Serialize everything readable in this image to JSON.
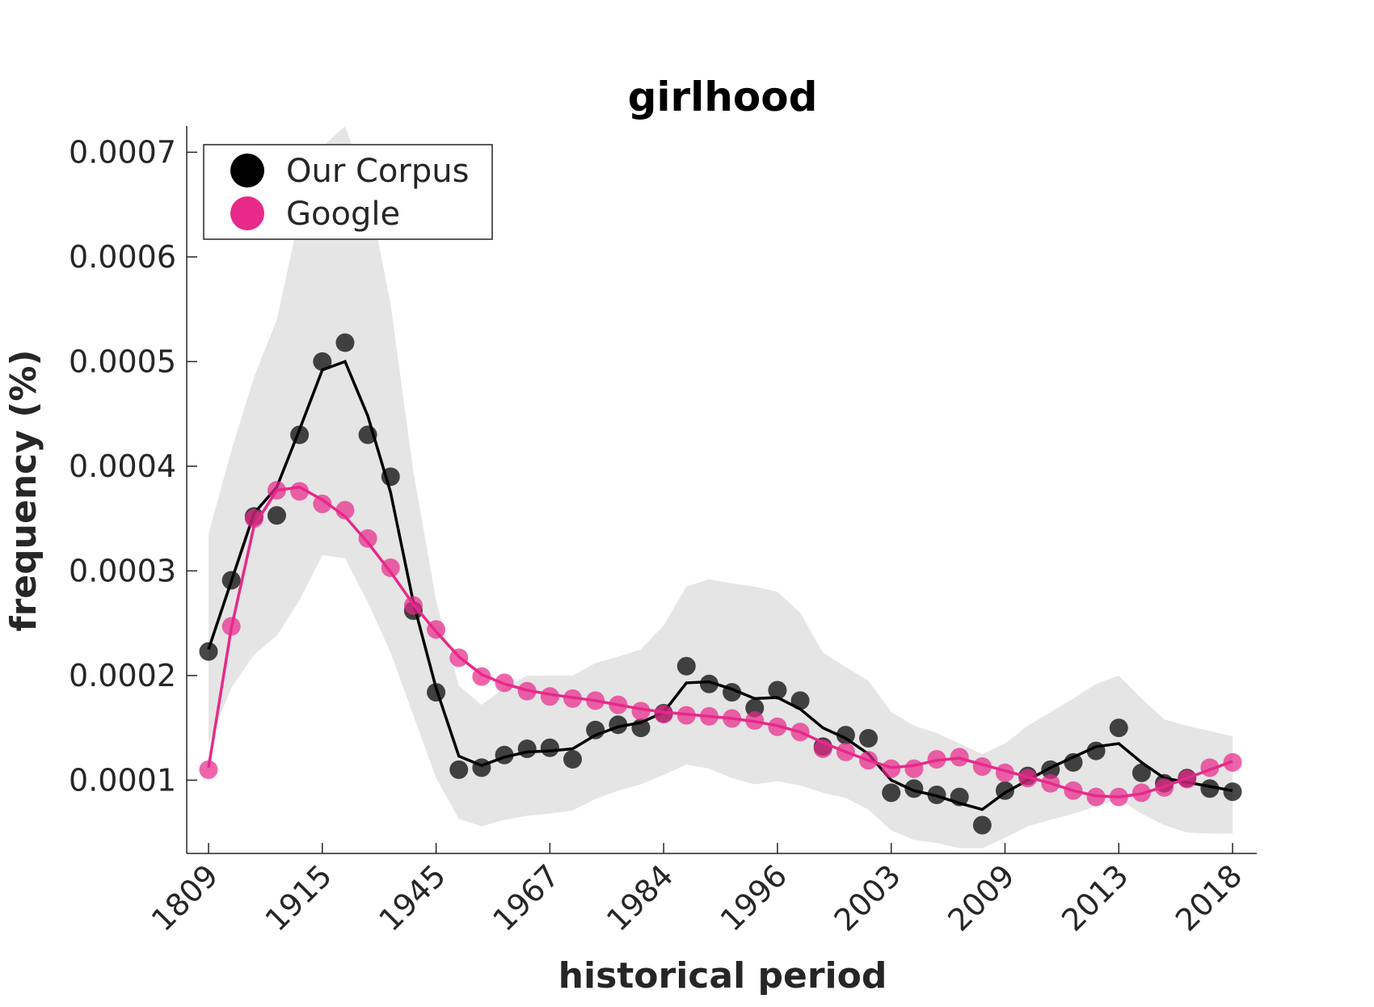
{
  "chart_data": {
    "type": "line",
    "title": "girlhood",
    "xlabel": "historical period",
    "ylabel": "frequency (%)",
    "x_tick_labels": [
      "1809",
      "1915",
      "1945",
      "1967",
      "1984",
      "1996",
      "2003",
      "2009",
      "2013",
      "2018"
    ],
    "y_ticks": [
      0.0001,
      0.0002,
      0.0003,
      0.0004,
      0.0005,
      0.0006,
      0.0007
    ],
    "y_tick_labels": [
      "0.0001",
      "0.0002",
      "0.0003",
      "0.0004",
      "0.0005",
      "0.0006",
      "0.0007"
    ],
    "ylim": [
      3e-05,
      0.000725
    ],
    "legend_position": "top-left",
    "grid": false,
    "series": [
      {
        "name": "Our Corpus",
        "color": "#000000",
        "points": [
          0.000223,
          0.000291,
          0.000352,
          0.000353,
          0.00043,
          0.0005,
          0.000518,
          0.00043,
          0.00039,
          0.000262,
          0.000184,
          0.00011,
          0.000112,
          0.000124,
          0.00013,
          0.000131,
          0.00012,
          0.000148,
          0.000153,
          0.00015,
          0.000164,
          0.000209,
          0.000192,
          0.000184,
          0.000169,
          0.000186,
          0.000176,
          0.000132,
          0.000143,
          0.00014,
          8.8e-05,
          9.2e-05,
          8.6e-05,
          8.4e-05,
          5.7e-05,
          9e-05,
          0.000104,
          0.00011,
          0.000117,
          0.000128,
          0.00015,
          0.000107,
          9.7e-05,
          0.000102,
          9.2e-05,
          8.9e-05
        ],
        "smoothed": [
          0.000225,
          0.00029,
          0.000355,
          0.00038,
          0.000435,
          0.000492,
          0.0005,
          0.000448,
          0.000375,
          0.00027,
          0.000188,
          0.000123,
          0.000114,
          0.000122,
          0.000127,
          0.000128,
          0.00013,
          0.000143,
          0.000151,
          0.000155,
          0.000165,
          0.000193,
          0.000194,
          0.000187,
          0.000178,
          0.000179,
          0.000168,
          0.00015,
          0.00014,
          0.000125,
          0.0001,
          9e-05,
          8.5e-05,
          7.8e-05,
          7.2e-05,
          8.8e-05,
          0.0001,
          0.000112,
          0.000122,
          0.000132,
          0.000135,
          0.000117,
          0.000102,
          9.8e-05,
          9.4e-05,
          9e-05
        ],
        "band_upper": [
          0.000335,
          0.000415,
          0.000485,
          0.00054,
          0.00064,
          0.000705,
          0.000725,
          0.000665,
          0.000555,
          0.000395,
          0.000272,
          0.00019,
          0.000172,
          0.000188,
          0.0002,
          0.0002,
          0.0002,
          0.000212,
          0.000218,
          0.000225,
          0.000248,
          0.000285,
          0.000292,
          0.000288,
          0.000285,
          0.00028,
          0.00026,
          0.000222,
          0.000208,
          0.000195,
          0.000165,
          0.000152,
          0.000145,
          0.000135,
          0.000125,
          0.000135,
          0.000152,
          0.000165,
          0.000178,
          0.000192,
          0.0002,
          0.000178,
          0.000158,
          0.000152,
          0.000147,
          0.000142
        ],
        "band_lower": [
          0.000135,
          0.000188,
          0.00022,
          0.000238,
          0.000272,
          0.000315,
          0.000312,
          0.00027,
          0.000222,
          0.000162,
          0.000102,
          6.3e-05,
          5.6e-05,
          6.2e-05,
          6.6e-05,
          6.8e-05,
          7.1e-05,
          8.2e-05,
          9e-05,
          9.6e-05,
          0.000105,
          0.000115,
          0.000111,
          0.000102,
          9.6e-05,
          9.9e-05,
          9.5e-05,
          8.8e-05,
          8.3e-05,
          7.2e-05,
          5.2e-05,
          4.3e-05,
          4e-05,
          3.5e-05,
          3.5e-05,
          4.5e-05,
          5.6e-05,
          6.2e-05,
          6.8e-05,
          7.5e-05,
          8.2e-05,
          6.8e-05,
          5.7e-05,
          5e-05,
          4.9e-05,
          4.9e-05
        ]
      },
      {
        "name": "Google",
        "color": "#e7298a",
        "points": [
          0.00011,
          0.000247,
          0.00035,
          0.000377,
          0.000376,
          0.000364,
          0.000358,
          0.000331,
          0.000303,
          0.000267,
          0.000244,
          0.000217,
          0.000199,
          0.000193,
          0.000185,
          0.00018,
          0.000178,
          0.000176,
          0.000172,
          0.000166,
          0.000163,
          0.000162,
          0.000161,
          0.000159,
          0.000157,
          0.000151,
          0.000146,
          0.00013,
          0.000127,
          0.000119,
          0.000111,
          0.000111,
          0.00012,
          0.000122,
          0.000113,
          0.000107,
          0.000102,
          9.7e-05,
          9e-05,
          8.4e-05,
          8.4e-05,
          8.8e-05,
          9.3e-05,
          0.000101,
          0.000112,
          0.000117
        ],
        "smoothed": [
          0.000112,
          0.000245,
          0.000343,
          0.000377,
          0.00038,
          0.000368,
          0.000352,
          0.000327,
          0.000299,
          0.000268,
          0.000242,
          0.000218,
          0.000201,
          0.000192,
          0.000186,
          0.000182,
          0.000179,
          0.000176,
          0.000172,
          0.000168,
          0.000165,
          0.000163,
          0.000161,
          0.000159,
          0.000156,
          0.000152,
          0.000146,
          0.000136,
          0.000127,
          0.000119,
          0.000112,
          0.000114,
          0.000119,
          0.000121,
          0.000115,
          0.000109,
          0.000103,
          9.7e-05,
          9e-05,
          8.5e-05,
          8.4e-05,
          8.7e-05,
          9.4e-05,
          0.000102,
          0.00011,
          0.000118
        ]
      }
    ]
  }
}
